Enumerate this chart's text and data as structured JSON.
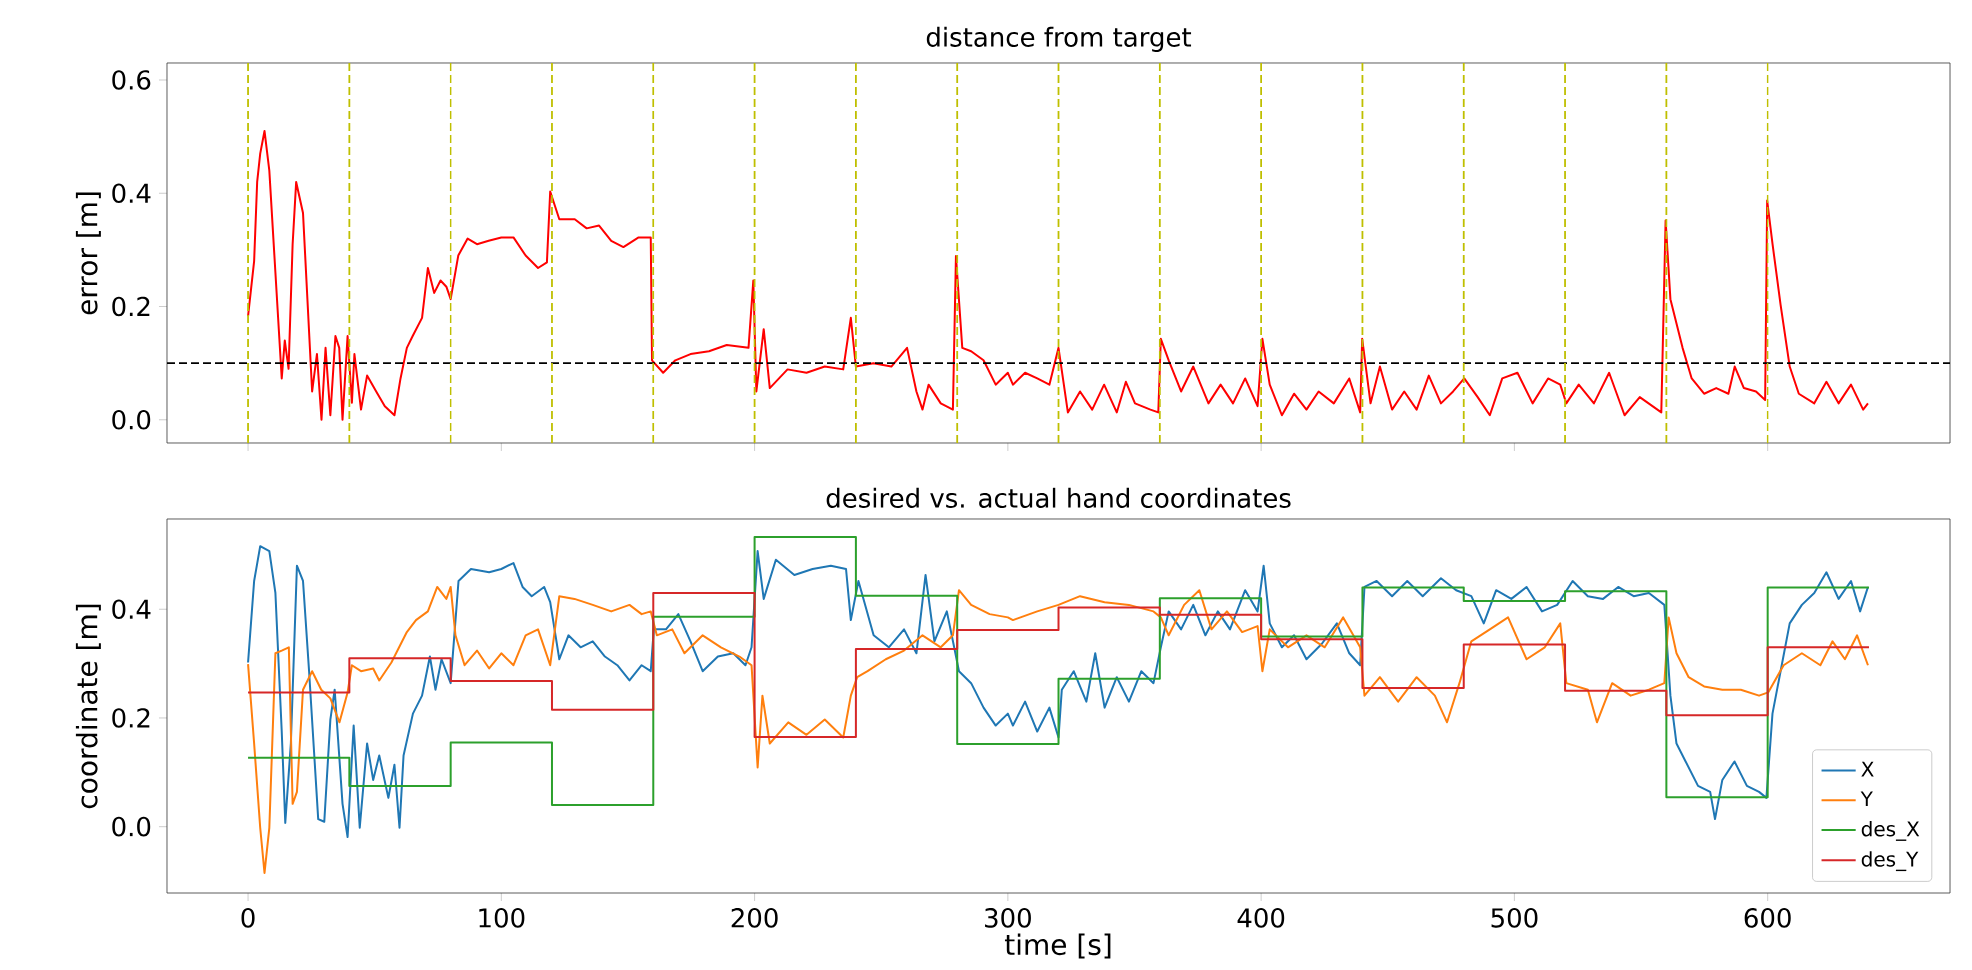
{
  "chart_data": [
    {
      "type": "line",
      "title": "distance from target",
      "ylabel": "error [m]",
      "xlim": [
        -32,
        672
      ],
      "ylim": [
        -0.041,
        0.63
      ],
      "xticks": [
        0,
        100,
        200,
        300,
        400,
        500,
        600
      ],
      "yticks": [
        {
          "value": 0,
          "label": "0.0"
        },
        {
          "value": 0.2,
          "label": "0.2"
        },
        {
          "value": 0.4,
          "label": "0.4"
        },
        {
          "value": 0.6,
          "label": "0.6"
        }
      ],
      "tick_labels": "y",
      "series": [
        {
          "color": "#ff0000",
          "x": [
            0,
            2.4,
            3.6,
            4.8,
            6.5,
            8.4,
            10.8,
            13.3,
            14.5,
            16,
            17.6,
            19,
            21.7,
            25.3,
            27.2,
            29,
            30.6,
            32.5,
            34.5,
            36,
            37.3,
            39.3,
            41,
            42,
            44.6,
            47,
            50.6,
            54,
            57.8,
            60.2,
            62.7,
            65,
            68.7,
            71,
            73.5,
            76,
            78.3,
            80,
            83,
            86.7,
            90.4,
            95,
            100,
            104.8,
            109.6,
            114.5,
            118,
            119.3,
            122.9,
            129,
            133.7,
            138.6,
            143.4,
            148.2,
            154.2,
            159,
            159.5,
            163.9,
            168.7,
            174.7,
            182,
            189,
            197.6,
            199.5,
            200.7,
            203.6,
            206,
            213,
            220.5,
            227.7,
            235,
            238,
            240,
            246.9,
            254,
            260.2,
            263.9,
            266.3,
            268.7,
            273.5,
            278.3,
            279.5,
            282,
            285.5,
            290.4,
            295.2,
            300,
            302,
            306.8,
            311.6,
            316.4,
            320,
            323.7,
            328.5,
            333.3,
            338,
            343,
            346.6,
            350.2,
            356.3,
            359.4,
            360.4,
            363.5,
            368.4,
            373.2,
            379.2,
            384,
            388.9,
            393.7,
            398.6,
            400.5,
            403.4,
            408.2,
            413,
            417.9,
            422.7,
            428.7,
            434.8,
            439.1,
            439.9,
            443.2,
            446.9,
            451.7,
            456.5,
            461.4,
            466.2,
            471,
            475.8,
            480.2,
            485.5,
            490.3,
            495.2,
            501.2,
            507.2,
            513.3,
            518.1,
            520.5,
            525.4,
            531.4,
            537.4,
            543.5,
            549.5,
            558,
            559.7,
            561.6,
            564,
            566.4,
            570,
            574.9,
            579.7,
            584.5,
            587,
            590.6,
            595.4,
            599,
            599.8,
            601.9,
            605.1,
            608.7,
            612.3,
            618.4,
            623.2,
            628,
            632.9,
            637.7,
            639.6
          ],
          "values": [
            0.183,
            0.28,
            0.42,
            0.47,
            0.51,
            0.44,
            0.26,
            0.073,
            0.14,
            0.09,
            0.31,
            0.42,
            0.365,
            0.05,
            0.116,
            0.0,
            0.127,
            0.008,
            0.148,
            0.127,
            0.0,
            0.148,
            0.03,
            0.116,
            0.018,
            0.078,
            0.05,
            0.024,
            0.008,
            0.073,
            0.127,
            0.148,
            0.18,
            0.268,
            0.224,
            0.246,
            0.235,
            0.213,
            0.29,
            0.32,
            0.31,
            0.316,
            0.322,
            0.322,
            0.29,
            0.268,
            0.278,
            0.403,
            0.354,
            0.354,
            0.338,
            0.343,
            0.316,
            0.305,
            0.322,
            0.322,
            0.105,
            0.083,
            0.105,
            0.116,
            0.121,
            0.132,
            0.127,
            0.246,
            0.05,
            0.16,
            0.056,
            0.089,
            0.083,
            0.094,
            0.089,
            0.18,
            0.094,
            0.1,
            0.094,
            0.127,
            0.05,
            0.018,
            0.062,
            0.029,
            0.018,
            0.289,
            0.127,
            0.121,
            0.105,
            0.062,
            0.083,
            0.062,
            0.083,
            0.073,
            0.062,
            0.127,
            0.013,
            0.05,
            0.018,
            0.062,
            0.013,
            0.067,
            0.029,
            0.018,
            0.013,
            0.143,
            0.105,
            0.05,
            0.094,
            0.029,
            0.062,
            0.029,
            0.073,
            0.024,
            0.143,
            0.062,
            0.008,
            0.046,
            0.018,
            0.05,
            0.029,
            0.073,
            0.013,
            0.143,
            0.029,
            0.094,
            0.018,
            0.05,
            0.018,
            0.078,
            0.029,
            0.05,
            0.073,
            0.04,
            0.008,
            0.073,
            0.083,
            0.029,
            0.073,
            0.062,
            0.029,
            0.062,
            0.029,
            0.083,
            0.008,
            0.04,
            0.013,
            0.352,
            0.213,
            0.17,
            0.127,
            0.073,
            0.046,
            0.056,
            0.046,
            0.094,
            0.056,
            0.05,
            0.035,
            0.387,
            0.311,
            0.203,
            0.094,
            0.046,
            0.029,
            0.067,
            0.029,
            0.062,
            0.018,
            0.029
          ]
        }
      ],
      "ref_lines": [
        {
          "axis": "y",
          "value": 0.1,
          "color": "#000000",
          "line_style": "dashed"
        },
        {
          "axis": "x",
          "value": 0,
          "color": "#bfbf00",
          "line_style": "dashed"
        },
        {
          "axis": "x",
          "value": 40,
          "color": "#bfbf00",
          "line_style": "dashed"
        },
        {
          "axis": "x",
          "value": 80,
          "color": "#bfbf00",
          "line_style": "dashed"
        },
        {
          "axis": "x",
          "value": 120,
          "color": "#bfbf00",
          "line_style": "dashed"
        },
        {
          "axis": "x",
          "value": 160,
          "color": "#bfbf00",
          "line_style": "dashed"
        },
        {
          "axis": "x",
          "value": 200,
          "color": "#bfbf00",
          "line_style": "dashed"
        },
        {
          "axis": "x",
          "value": 240,
          "color": "#bfbf00",
          "line_style": "dashed"
        },
        {
          "axis": "x",
          "value": 280,
          "color": "#bfbf00",
          "line_style": "dashed"
        },
        {
          "axis": "x",
          "value": 320,
          "color": "#bfbf00",
          "line_style": "dashed"
        },
        {
          "axis": "x",
          "value": 360,
          "color": "#bfbf00",
          "line_style": "dashed"
        },
        {
          "axis": "x",
          "value": 400,
          "color": "#bfbf00",
          "line_style": "dashed"
        },
        {
          "axis": "x",
          "value": 440,
          "color": "#bfbf00",
          "line_style": "dashed"
        },
        {
          "axis": "x",
          "value": 480,
          "color": "#bfbf00",
          "line_style": "dashed"
        },
        {
          "axis": "x",
          "value": 520,
          "color": "#bfbf00",
          "line_style": "dashed"
        },
        {
          "axis": "x",
          "value": 560,
          "color": "#bfbf00",
          "line_style": "dashed"
        },
        {
          "axis": "x",
          "value": 600,
          "color": "#bfbf00",
          "line_style": "dashed"
        }
      ]
    },
    {
      "type": "line",
      "title": "desired vs. actual hand coordinates",
      "xlabel": "time [s]",
      "ylabel": "coordinate [m]",
      "xlim": [
        -32,
        672
      ],
      "ylim": [
        -0.122,
        0.566
      ],
      "xticks": [
        0,
        100,
        200,
        300,
        400,
        500,
        600
      ],
      "yticks": [
        {
          "value": 0,
          "label": "0.0"
        },
        {
          "value": 0.2,
          "label": "0.2"
        },
        {
          "value": 0.4,
          "label": "0.4"
        }
      ],
      "legend": "bottom right",
      "series": [
        {
          "name": "X",
          "color": "#1f77b4",
          "x": [
            0,
            2.4,
            4.8,
            8.4,
            10.8,
            13.3,
            14.7,
            16.9,
            19.3,
            21.7,
            24.1,
            27.7,
            30.1,
            32.5,
            34.2,
            37.3,
            39.3,
            41.7,
            44.1,
            47,
            49.4,
            51.8,
            55.4,
            57.8,
            59.8,
            61.4,
            65.1,
            68.7,
            71.8,
            74,
            76.4,
            80,
            83.1,
            88,
            95.2,
            100,
            104.8,
            108.4,
            112,
            116.9,
            119.3,
            122.9,
            126.5,
            131.3,
            136.1,
            140.9,
            145.8,
            150.6,
            155.4,
            159,
            160.2,
            165,
            169.9,
            174.7,
            179.5,
            185.5,
            191.6,
            196.4,
            198.8,
            201.2,
            203.6,
            208.4,
            215.7,
            222.9,
            230.1,
            236.1,
            238,
            241,
            247,
            253,
            259,
            263.9,
            267.5,
            271,
            275.9,
            278.8,
            280.7,
            285.5,
            290.4,
            295.2,
            300,
            302,
            306.8,
            311.6,
            316.4,
            320,
            321.3,
            326,
            331,
            334.5,
            338.2,
            343,
            347.8,
            352.7,
            357.5,
            360.4,
            363.5,
            368.4,
            373.2,
            378,
            382.9,
            387.7,
            393.7,
            398.6,
            401,
            403.4,
            408.2,
            413,
            417.9,
            423.9,
            429.9,
            434.8,
            439.1,
            440.8,
            445.6,
            451.7,
            457.7,
            463.8,
            471,
            477,
            483,
            487.9,
            492.8,
            498.8,
            504.8,
            510.9,
            516.9,
            523,
            529,
            535,
            541,
            547.1,
            553.1,
            559.2,
            561.6,
            564,
            567.6,
            572.5,
            577.3,
            579.2,
            582.1,
            586.9,
            591.8,
            596.6,
            599.5,
            601.9,
            605.1,
            608.7,
            613.5,
            618.4,
            623.2,
            628,
            632.9,
            636.5,
            639.6
          ],
          "values": [
            0.302,
            0.452,
            0.516,
            0.507,
            0.43,
            0.175,
            0.007,
            0.153,
            0.48,
            0.452,
            0.286,
            0.014,
            0.009,
            0.197,
            0.252,
            0.042,
            -0.019,
            0.186,
            -0.002,
            0.153,
            0.086,
            0.131,
            0.053,
            0.114,
            -0.002,
            0.131,
            0.208,
            0.241,
            0.313,
            0.252,
            0.308,
            0.264,
            0.452,
            0.474,
            0.468,
            0.474,
            0.485,
            0.441,
            0.424,
            0.441,
            0.413,
            0.308,
            0.352,
            0.33,
            0.341,
            0.313,
            0.297,
            0.269,
            0.297,
            0.286,
            0.363,
            0.363,
            0.391,
            0.341,
            0.286,
            0.313,
            0.319,
            0.297,
            0.33,
            0.507,
            0.419,
            0.491,
            0.463,
            0.474,
            0.48,
            0.474,
            0.38,
            0.452,
            0.352,
            0.33,
            0.363,
            0.319,
            0.463,
            0.341,
            0.396,
            0.33,
            0.286,
            0.264,
            0.219,
            0.186,
            0.208,
            0.186,
            0.23,
            0.175,
            0.219,
            0.164,
            0.252,
            0.286,
            0.23,
            0.319,
            0.219,
            0.275,
            0.23,
            0.286,
            0.264,
            0.33,
            0.396,
            0.363,
            0.408,
            0.352,
            0.396,
            0.363,
            0.435,
            0.396,
            0.48,
            0.374,
            0.33,
            0.352,
            0.308,
            0.336,
            0.374,
            0.319,
            0.297,
            0.441,
            0.452,
            0.424,
            0.452,
            0.424,
            0.457,
            0.435,
            0.424,
            0.374,
            0.435,
            0.419,
            0.441,
            0.396,
            0.408,
            0.452,
            0.424,
            0.419,
            0.441,
            0.424,
            0.43,
            0.408,
            0.241,
            0.153,
            0.12,
            0.075,
            0.064,
            0.014,
            0.086,
            0.12,
            0.075,
            0.064,
            0.053,
            0.208,
            0.286,
            0.374,
            0.408,
            0.43,
            0.468,
            0.419,
            0.452,
            0.396,
            0.441
          ]
        },
        {
          "name": "Y",
          "color": "#ff7f0e",
          "x": [
            0,
            2.4,
            4.8,
            6.5,
            8.4,
            10.8,
            13.3,
            16.1,
            17.6,
            19.3,
            21.7,
            25.3,
            28.9,
            32.5,
            36.1,
            39.3,
            41,
            44.6,
            49.4,
            51.8,
            56.6,
            62.7,
            66.3,
            71,
            74.7,
            78.3,
            80,
            81.9,
            85.5,
            90.4,
            95.2,
            100,
            104.8,
            109.6,
            114.5,
            119.3,
            122.9,
            128.9,
            136.1,
            143.4,
            150.6,
            155.4,
            159,
            161.4,
            167.5,
            172.3,
            179.5,
            186.7,
            194,
            198.8,
            201.2,
            203.1,
            206,
            213.3,
            220.5,
            227.7,
            235,
            238,
            240.5,
            244.6,
            251.8,
            259,
            266.3,
            273.5,
            278.3,
            280.7,
            285.5,
            292.8,
            300,
            302,
            311.6,
            320,
            328.5,
            338.2,
            347.8,
            357.5,
            360.4,
            363.5,
            369.6,
            375.6,
            380.4,
            386.5,
            392.5,
            398.6,
            400.5,
            403.4,
            410.6,
            417.9,
            425.1,
            432.4,
            439.1,
            440.8,
            446.9,
            454.1,
            461.4,
            468.6,
            473.4,
            478.3,
            483,
            490.3,
            497.5,
            504.8,
            512,
            518.1,
            520.5,
            529,
            532.6,
            538.6,
            545.9,
            553.1,
            559.2,
            560.9,
            564,
            568.8,
            574.9,
            582.1,
            589.4,
            596.6,
            600.2,
            606.3,
            613.5,
            620.8,
            625.6,
            630.5,
            635.3,
            639.6
          ],
          "values": [
            0.299,
            0.153,
            -0.002,
            -0.085,
            -0.002,
            0.319,
            0.324,
            0.33,
            0.042,
            0.064,
            0.252,
            0.286,
            0.252,
            0.236,
            0.192,
            0.247,
            0.297,
            0.286,
            0.291,
            0.269,
            0.302,
            0.358,
            0.38,
            0.396,
            0.441,
            0.419,
            0.441,
            0.352,
            0.297,
            0.324,
            0.291,
            0.319,
            0.297,
            0.352,
            0.363,
            0.297,
            0.424,
            0.419,
            0.408,
            0.396,
            0.408,
            0.391,
            0.396,
            0.352,
            0.363,
            0.319,
            0.352,
            0.33,
            0.313,
            0.297,
            0.109,
            0.241,
            0.153,
            0.192,
            0.169,
            0.197,
            0.164,
            0.241,
            0.275,
            0.286,
            0.308,
            0.324,
            0.352,
            0.33,
            0.352,
            0.435,
            0.408,
            0.391,
            0.385,
            0.38,
            0.396,
            0.408,
            0.424,
            0.413,
            0.408,
            0.396,
            0.385,
            0.352,
            0.408,
            0.435,
            0.363,
            0.396,
            0.358,
            0.369,
            0.286,
            0.363,
            0.33,
            0.352,
            0.33,
            0.385,
            0.33,
            0.241,
            0.275,
            0.23,
            0.275,
            0.241,
            0.192,
            0.264,
            0.341,
            0.363,
            0.385,
            0.308,
            0.33,
            0.374,
            0.264,
            0.252,
            0.192,
            0.264,
            0.241,
            0.252,
            0.264,
            0.385,
            0.319,
            0.275,
            0.258,
            0.252,
            0.252,
            0.241,
            0.247,
            0.297,
            0.319,
            0.297,
            0.341,
            0.308,
            0.352,
            0.297
          ]
        },
        {
          "name": "des_X",
          "type": "step",
          "color": "#2ca02c",
          "x": [
            0,
            40,
            80,
            120,
            160,
            200,
            240,
            280,
            320,
            360,
            400,
            440,
            480,
            520,
            560,
            600,
            640
          ],
          "values": [
            0.127,
            0.075,
            0.155,
            0.04,
            0.386,
            0.533,
            0.425,
            0.152,
            0.272,
            0.42,
            0.35,
            0.44,
            0.415,
            0.433,
            0.054,
            0.44,
            0.44
          ]
        },
        {
          "name": "des_Y",
          "type": "step",
          "color": "#d62728",
          "x": [
            0,
            40,
            80,
            120,
            160,
            200,
            240,
            280,
            320,
            360,
            400,
            440,
            480,
            520,
            560,
            600,
            640
          ],
          "values": [
            0.247,
            0.31,
            0.268,
            0.215,
            0.43,
            0.165,
            0.327,
            0.362,
            0.403,
            0.39,
            0.345,
            0.255,
            0.335,
            0.25,
            0.205,
            0.33,
            0.33
          ]
        }
      ]
    }
  ]
}
